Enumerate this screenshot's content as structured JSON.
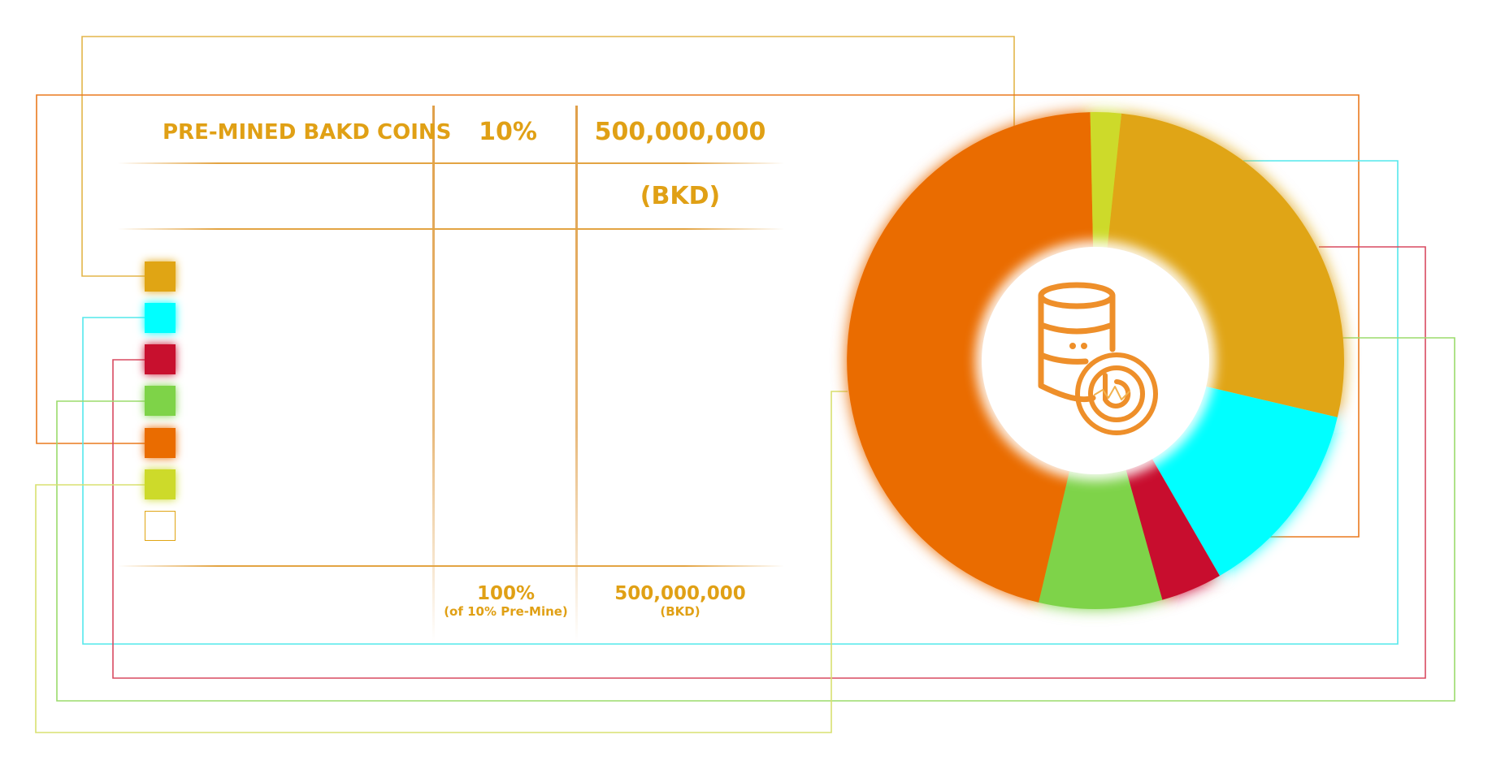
{
  "table": {
    "header_label": "PRE-MINED BAKD COINS",
    "header_percent": "10%",
    "header_amount": "500,000,000",
    "header_unit": "(BKD)",
    "total_percent": "100%",
    "total_percent_note": "(of 10% Pre-Mine)",
    "total_amount": "500,000,000",
    "total_unit": "(BKD)"
  },
  "legend": {
    "swatches": [
      {
        "color": "#e0a514"
      },
      {
        "color": "#00ffff"
      },
      {
        "color": "#c8102e"
      },
      {
        "color": "#7ed348"
      },
      {
        "color": "#ea6c00"
      },
      {
        "color": "#cdda2a"
      },
      {
        "color": "#ffffff",
        "outline": "#e0a514"
      }
    ]
  },
  "center_icon": "coin-stack-icon",
  "chart_data": {
    "type": "pie",
    "variant": "donut",
    "title": "",
    "slices": [
      {
        "value": 27.0,
        "color": "#e0a514"
      },
      {
        "value": 13.0,
        "color": "#00ffff"
      },
      {
        "value": 4.0,
        "color": "#c8102e"
      },
      {
        "value": 8.0,
        "color": "#7ed348"
      },
      {
        "value": 46.0,
        "color": "#ea6c00"
      },
      {
        "value": 2.0,
        "color": "#cdda2a"
      }
    ],
    "start_angle_deg": 6,
    "grid": false,
    "legend": "left"
  }
}
